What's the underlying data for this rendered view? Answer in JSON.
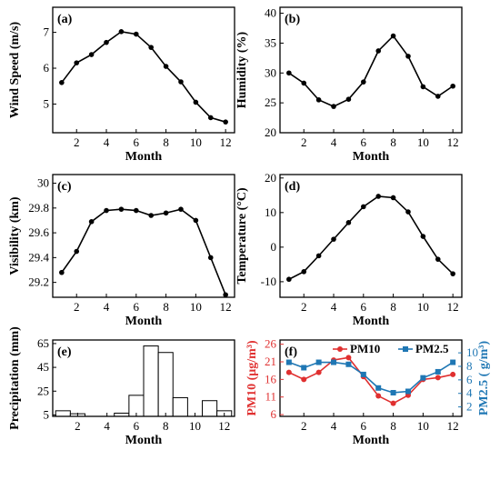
{
  "chart_data": [
    {
      "panel": "(a)",
      "type": "line",
      "x": [
        1,
        2,
        3,
        4,
        5,
        6,
        7,
        8,
        9,
        10,
        11,
        12
      ],
      "series": [
        {
          "values": [
            5.6,
            6.15,
            6.38,
            6.72,
            7.02,
            6.95,
            6.58,
            6.05,
            5.62,
            5.05,
            4.62,
            4.5
          ],
          "color": "#000000"
        }
      ],
      "xlabel": "Month",
      "ylabel": "Wind Speed (m/s)",
      "xlim": [
        0.4,
        12.6
      ],
      "ylim": [
        4.2,
        7.7
      ],
      "xticks": [
        2,
        4,
        6,
        8,
        10,
        12
      ],
      "yticks": [
        5,
        6,
        7
      ]
    },
    {
      "panel": "(b)",
      "type": "line",
      "x": [
        1,
        2,
        3,
        4,
        5,
        6,
        7,
        8,
        9,
        10,
        11,
        12
      ],
      "series": [
        {
          "values": [
            30,
            28.3,
            25.5,
            24.4,
            25.6,
            28.5,
            33.7,
            36.2,
            32.8,
            27.7,
            26.1,
            27.8
          ],
          "color": "#000000"
        }
      ],
      "xlabel": "Month",
      "ylabel": "Humidity (%)",
      "xlim": [
        0.4,
        12.6
      ],
      "ylim": [
        20,
        41
      ],
      "xticks": [
        2,
        4,
        6,
        8,
        10,
        12
      ],
      "yticks": [
        20,
        25,
        30,
        35,
        40
      ]
    },
    {
      "panel": "(c)",
      "type": "line",
      "x": [
        1,
        2,
        3,
        4,
        5,
        6,
        7,
        8,
        9,
        10,
        11,
        12
      ],
      "series": [
        {
          "values": [
            29.28,
            29.45,
            29.69,
            29.78,
            29.79,
            29.78,
            29.74,
            29.76,
            29.79,
            29.7,
            29.4,
            29.1
          ],
          "color": "#000000"
        }
      ],
      "xlabel": "Month",
      "ylabel": "Visibility (km)",
      "xlim": [
        0.4,
        12.6
      ],
      "ylim": [
        29.08,
        30.07
      ],
      "xticks": [
        2,
        4,
        6,
        8,
        10,
        12
      ],
      "yticks": [
        29.2,
        29.4,
        29.6,
        29.8,
        30
      ],
      "yticklabels": [
        "29.2",
        "29.4",
        "29.6",
        "29.8",
        "30"
      ]
    },
    {
      "panel": "(d)",
      "type": "line",
      "x": [
        1,
        2,
        3,
        4,
        5,
        6,
        7,
        8,
        9,
        10,
        11,
        12
      ],
      "series": [
        {
          "values": [
            -9.3,
            -7.1,
            -2.5,
            2.3,
            7.1,
            11.7,
            14.7,
            14.3,
            10.2,
            3.1,
            -3.5,
            -7.7
          ],
          "color": "#000000"
        }
      ],
      "xlabel": "Month",
      "ylabel": "Temperature (°C)",
      "xlim": [
        0.4,
        12.6
      ],
      "ylim": [
        -14.5,
        21
      ],
      "xticks": [
        2,
        4,
        6,
        8,
        10,
        12
      ],
      "yticks": [
        -10,
        0,
        10,
        20
      ]
    },
    {
      "panel": "(e)",
      "type": "bar",
      "x": [
        1,
        2,
        3,
        4,
        5,
        6,
        7,
        8,
        9,
        10,
        11,
        12
      ],
      "values": [
        8.5,
        6,
        0,
        3.5,
        6.5,
        21.5,
        63,
        57.5,
        19.5,
        0,
        17,
        8.5
      ],
      "xlabel": "Month",
      "ylabel": "Precipitation (mm)",
      "xlim": [
        0.3,
        12.7
      ],
      "ylim": [
        3.8,
        68
      ],
      "xticks": [
        2,
        4,
        6,
        8,
        10,
        12
      ],
      "yticks": [
        5,
        25,
        45,
        65
      ]
    },
    {
      "panel": "(f)",
      "type": "line",
      "x": [
        1,
        2,
        3,
        4,
        5,
        6,
        7,
        8,
        9,
        10,
        11,
        12
      ],
      "xlabel": "Month",
      "xlim": [
        0.4,
        12.6
      ],
      "xticks": [
        2,
        4,
        6,
        8,
        10,
        12
      ],
      "ylabel": "PM10 (μg/m³)",
      "ylim": [
        5.5,
        27.2
      ],
      "yticks": [
        6,
        11,
        16,
        21,
        26
      ],
      "y2label": "PM2.5 ( g/m³)",
      "y2lim": [
        0.6,
        11.9
      ],
      "y2ticks": [
        2,
        4,
        6,
        8,
        10
      ],
      "legend_position": "top-right",
      "series": [
        {
          "name": "PM10",
          "axis": "left",
          "marker": "circle",
          "color": "#e03030",
          "values": [
            18,
            16,
            18,
            21.5,
            22.2,
            16.8,
            11.3,
            9.2,
            11.5,
            16,
            16.5,
            17.4
          ]
        },
        {
          "name": "PM2.5",
          "axis": "right",
          "marker": "square",
          "color": "#1f77b4",
          "values": [
            8.6,
            7.8,
            8.6,
            8.6,
            8.3,
            6.8,
            4.8,
            4.1,
            4.3,
            6.3,
            7.2,
            8.6
          ]
        }
      ]
    }
  ]
}
